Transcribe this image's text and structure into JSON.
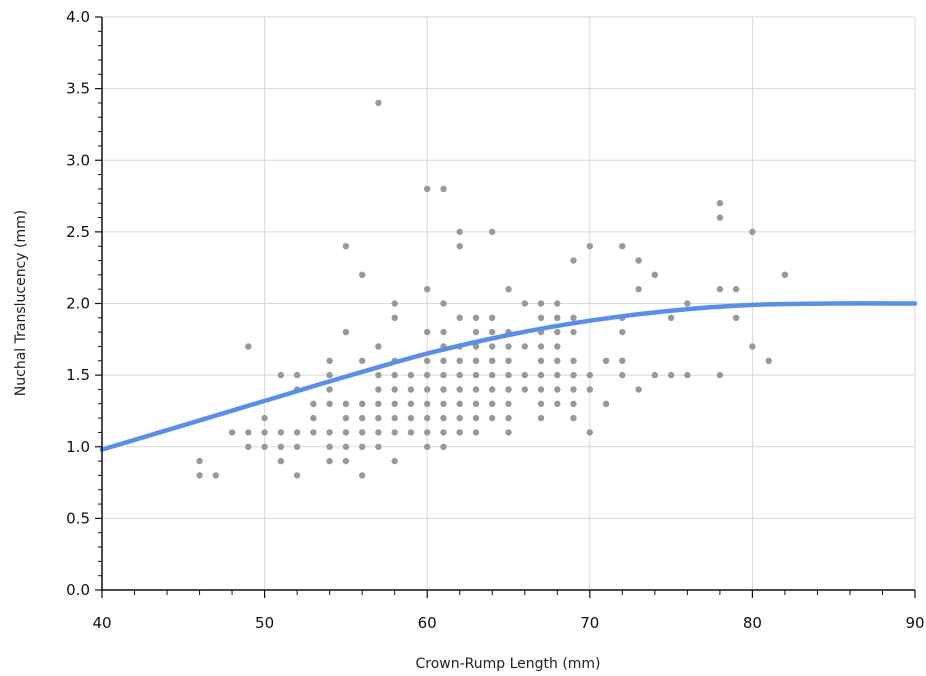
{
  "chart_data": {
    "type": "scatter",
    "title": "",
    "xlabel": "Crown-Rump Length (mm)",
    "ylabel": "Nuchal Translucency (mm)",
    "xlim": [
      40,
      90
    ],
    "ylim": [
      0,
      4
    ],
    "x_ticks": [
      40,
      50,
      60,
      70,
      80,
      90
    ],
    "y_ticks": [
      "0.0",
      "0.5",
      "1.0",
      "1.5",
      "2.0",
      "2.5",
      "3.0",
      "3.5",
      "4.0"
    ],
    "grid": true,
    "legend": "none",
    "colors": {
      "points": "#999999",
      "curve": "#5b8ee6"
    },
    "series": [
      {
        "type": "scatter",
        "points": [
          [
            46,
            0.9
          ],
          [
            46,
            0.8
          ],
          [
            47,
            0.8
          ],
          [
            48,
            1.1
          ],
          [
            49,
            1.7
          ],
          [
            49,
            1.1
          ],
          [
            49,
            1.0
          ],
          [
            50,
            1.2
          ],
          [
            50,
            1.1
          ],
          [
            50,
            1.0
          ],
          [
            51,
            1.5
          ],
          [
            51,
            1.1
          ],
          [
            51,
            1.0
          ],
          [
            51,
            0.9
          ],
          [
            52,
            1.5
          ],
          [
            52,
            1.4
          ],
          [
            52,
            1.1
          ],
          [
            52,
            1.0
          ],
          [
            52,
            0.8
          ],
          [
            53,
            1.3
          ],
          [
            53,
            1.2
          ],
          [
            53,
            1.1
          ],
          [
            54,
            1.6
          ],
          [
            54,
            1.5
          ],
          [
            54,
            1.4
          ],
          [
            54,
            1.3
          ],
          [
            54,
            1.1
          ],
          [
            54,
            1.0
          ],
          [
            54,
            0.9
          ],
          [
            55,
            2.4
          ],
          [
            55,
            1.8
          ],
          [
            55,
            1.3
          ],
          [
            55,
            1.2
          ],
          [
            55,
            1.1
          ],
          [
            55,
            1.0
          ],
          [
            55,
            0.9
          ],
          [
            56,
            2.2
          ],
          [
            56,
            1.6
          ],
          [
            56,
            1.3
          ],
          [
            56,
            1.2
          ],
          [
            56,
            1.1
          ],
          [
            56,
            1.0
          ],
          [
            56,
            0.8
          ],
          [
            57,
            3.4
          ],
          [
            57,
            1.7
          ],
          [
            57,
            1.5
          ],
          [
            57,
            1.4
          ],
          [
            57,
            1.3
          ],
          [
            57,
            1.2
          ],
          [
            57,
            1.1
          ],
          [
            57,
            1.0
          ],
          [
            58,
            2.0
          ],
          [
            58,
            1.9
          ],
          [
            58,
            1.6
          ],
          [
            58,
            1.5
          ],
          [
            58,
            1.4
          ],
          [
            58,
            1.3
          ],
          [
            58,
            1.2
          ],
          [
            58,
            1.1
          ],
          [
            58,
            0.9
          ],
          [
            59,
            1.5
          ],
          [
            59,
            1.4
          ],
          [
            59,
            1.3
          ],
          [
            59,
            1.2
          ],
          [
            59,
            1.1
          ],
          [
            60,
            2.8
          ],
          [
            60,
            2.1
          ],
          [
            60,
            1.8
          ],
          [
            60,
            1.6
          ],
          [
            60,
            1.5
          ],
          [
            60,
            1.4
          ],
          [
            60,
            1.3
          ],
          [
            60,
            1.2
          ],
          [
            60,
            1.1
          ],
          [
            60,
            1.0
          ],
          [
            61,
            2.8
          ],
          [
            61,
            2.0
          ],
          [
            61,
            1.8
          ],
          [
            61,
            1.7
          ],
          [
            61,
            1.6
          ],
          [
            61,
            1.5
          ],
          [
            61,
            1.4
          ],
          [
            61,
            1.3
          ],
          [
            61,
            1.2
          ],
          [
            61,
            1.1
          ],
          [
            61,
            1.0
          ],
          [
            62,
            2.5
          ],
          [
            62,
            2.4
          ],
          [
            62,
            1.9
          ],
          [
            62,
            1.7
          ],
          [
            62,
            1.6
          ],
          [
            62,
            1.5
          ],
          [
            62,
            1.4
          ],
          [
            62,
            1.3
          ],
          [
            62,
            1.2
          ],
          [
            62,
            1.1
          ],
          [
            63,
            1.9
          ],
          [
            63,
            1.8
          ],
          [
            63,
            1.7
          ],
          [
            63,
            1.6
          ],
          [
            63,
            1.5
          ],
          [
            63,
            1.4
          ],
          [
            63,
            1.3
          ],
          [
            63,
            1.2
          ],
          [
            63,
            1.1
          ],
          [
            64,
            2.5
          ],
          [
            64,
            1.9
          ],
          [
            64,
            1.8
          ],
          [
            64,
            1.7
          ],
          [
            64,
            1.6
          ],
          [
            64,
            1.5
          ],
          [
            64,
            1.4
          ],
          [
            64,
            1.3
          ],
          [
            64,
            1.2
          ],
          [
            65,
            2.1
          ],
          [
            65,
            1.8
          ],
          [
            65,
            1.7
          ],
          [
            65,
            1.6
          ],
          [
            65,
            1.5
          ],
          [
            65,
            1.4
          ],
          [
            65,
            1.3
          ],
          [
            65,
            1.2
          ],
          [
            65,
            1.1
          ],
          [
            66,
            2.0
          ],
          [
            66,
            1.7
          ],
          [
            66,
            1.5
          ],
          [
            66,
            1.4
          ],
          [
            67,
            2.0
          ],
          [
            67,
            1.9
          ],
          [
            67,
            1.8
          ],
          [
            67,
            1.7
          ],
          [
            67,
            1.6
          ],
          [
            67,
            1.5
          ],
          [
            67,
            1.4
          ],
          [
            67,
            1.3
          ],
          [
            67,
            1.2
          ],
          [
            68,
            2.0
          ],
          [
            68,
            1.9
          ],
          [
            68,
            1.8
          ],
          [
            68,
            1.7
          ],
          [
            68,
            1.6
          ],
          [
            68,
            1.5
          ],
          [
            68,
            1.4
          ],
          [
            68,
            1.3
          ],
          [
            69,
            2.3
          ],
          [
            69,
            1.9
          ],
          [
            69,
            1.8
          ],
          [
            69,
            1.6
          ],
          [
            69,
            1.5
          ],
          [
            69,
            1.4
          ],
          [
            69,
            1.3
          ],
          [
            69,
            1.2
          ],
          [
            70,
            2.4
          ],
          [
            70,
            1.5
          ],
          [
            70,
            1.4
          ],
          [
            70,
            1.1
          ],
          [
            71,
            1.6
          ],
          [
            71,
            1.3
          ],
          [
            72,
            2.4
          ],
          [
            72,
            1.9
          ],
          [
            72,
            1.8
          ],
          [
            72,
            1.6
          ],
          [
            72,
            1.5
          ],
          [
            73,
            2.3
          ],
          [
            73,
            2.1
          ],
          [
            73,
            1.4
          ],
          [
            74,
            2.2
          ],
          [
            74,
            1.5
          ],
          [
            75,
            1.9
          ],
          [
            75,
            1.5
          ],
          [
            76,
            2.0
          ],
          [
            76,
            1.5
          ],
          [
            78,
            2.7
          ],
          [
            78,
            2.6
          ],
          [
            78,
            2.1
          ],
          [
            78,
            1.5
          ],
          [
            79,
            2.1
          ],
          [
            79,
            1.9
          ],
          [
            80,
            2.5
          ],
          [
            80,
            1.7
          ],
          [
            81,
            1.6
          ],
          [
            82,
            2.2
          ]
        ]
      },
      {
        "type": "line",
        "points": [
          [
            40,
            0.98
          ],
          [
            45,
            1.15
          ],
          [
            50,
            1.32
          ],
          [
            55,
            1.49
          ],
          [
            60,
            1.65
          ],
          [
            65,
            1.78
          ],
          [
            70,
            1.88
          ],
          [
            75,
            1.95
          ],
          [
            80,
            1.99
          ],
          [
            85,
            2.0
          ],
          [
            90,
            2.0
          ]
        ]
      }
    ]
  }
}
